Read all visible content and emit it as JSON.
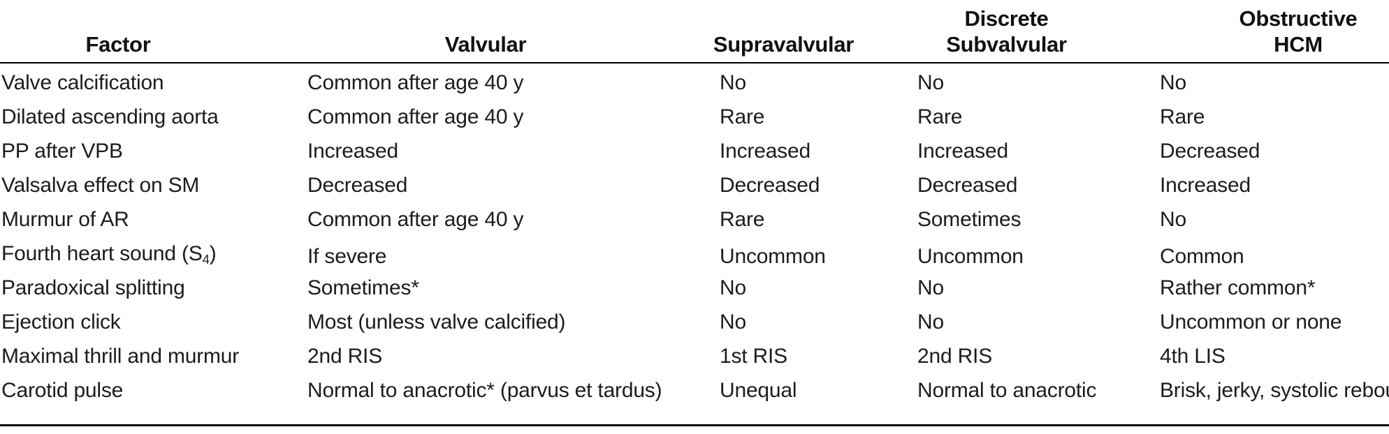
{
  "table": {
    "text_color": "#1c1c1e",
    "rule_color": "#000000",
    "columns": [
      {
        "line1": "",
        "line2": "Factor"
      },
      {
        "line1": "",
        "line2": "Valvular"
      },
      {
        "line1": "",
        "line2": "Supravalvular"
      },
      {
        "line1": "Discrete",
        "line2": "Subvalvular"
      },
      {
        "line1": "Obstructive",
        "line2": "HCM"
      }
    ],
    "rows": [
      {
        "factor": "Valve calcification",
        "valvular": "Common after age 40 y",
        "supravalvular": "No",
        "discrete_subvalvular": "No",
        "obstructive_hcm": "No"
      },
      {
        "factor": "Dilated ascending aorta",
        "valvular": "Common after age 40 y",
        "supravalvular": "Rare",
        "discrete_subvalvular": "Rare",
        "obstructive_hcm": "Rare"
      },
      {
        "factor": "PP after VPB",
        "valvular": "Increased",
        "supravalvular": "Increased",
        "discrete_subvalvular": "Increased",
        "obstructive_hcm": "Decreased"
      },
      {
        "factor": "Valsalva effect on SM",
        "valvular": "Decreased",
        "supravalvular": "Decreased",
        "discrete_subvalvular": "Decreased",
        "obstructive_hcm": "Increased"
      },
      {
        "factor": "Murmur of AR",
        "valvular": "Common after age 40 y",
        "supravalvular": "Rare",
        "discrete_subvalvular": "Sometimes",
        "obstructive_hcm": "No"
      },
      {
        "factor_parts": [
          "Fourth heart sound (S",
          "4",
          ")"
        ],
        "valvular": "If severe",
        "supravalvular": "Uncommon",
        "discrete_subvalvular": "Uncommon",
        "obstructive_hcm": "Common"
      },
      {
        "factor": "Paradoxical splitting",
        "valvular": "Sometimes*",
        "supravalvular": "No",
        "discrete_subvalvular": "No",
        "obstructive_hcm": "Rather common*"
      },
      {
        "factor": "Ejection click",
        "valvular": "Most (unless valve calcified)",
        "supravalvular": "No",
        "discrete_subvalvular": "No",
        "obstructive_hcm": "Uncommon or none"
      },
      {
        "factor": "Maximal thrill and murmur",
        "valvular": "2nd RIS",
        "supravalvular": "1st RIS",
        "discrete_subvalvular": "2nd RIS",
        "obstructive_hcm": "4th LIS"
      },
      {
        "factor": "Carotid pulse",
        "valvular": "Normal to anacrotic* (parvus et tardus)",
        "supravalvular": "Unequal",
        "discrete_subvalvular": "Normal to anacrotic",
        "obstructive_hcm": "Brisk, jerky, systolic rebou"
      }
    ]
  }
}
